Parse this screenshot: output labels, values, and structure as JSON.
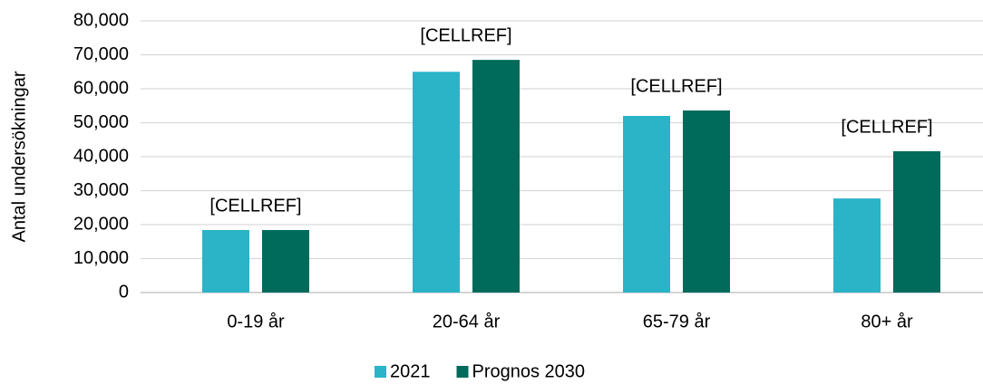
{
  "chart_data": {
    "type": "bar",
    "y_label": "Antal undersökningar",
    "categories": [
      "0-19 år",
      "20-64 år",
      "65-79 år",
      "80+ år"
    ],
    "series": [
      {
        "name": "2021",
        "color": "#2bb3c8",
        "values": [
          18400,
          65000,
          52000,
          27700
        ]
      },
      {
        "name": "Prognos 2030",
        "color": "#006a5b",
        "values": [
          18400,
          68500,
          53600,
          41600
        ],
        "value_labels": [
          "[CELLREF]",
          "[CELLREF]",
          "[CELLREF]",
          "[CELLREF]"
        ]
      }
    ],
    "ylim": [
      0,
      80000
    ],
    "yticks": [
      0,
      {
        "value": 10000,
        "label": "10,000"
      },
      {
        "value": 20000,
        "label": "20,000"
      },
      {
        "value": 30000,
        "label": "30,000"
      },
      {
        "value": 40000,
        "label": "40,000"
      },
      {
        "value": 50000,
        "label": "50,000"
      },
      {
        "value": 60000,
        "label": "60,000"
      },
      {
        "value": 70000,
        "label": "70,000"
      },
      {
        "value": 80000,
        "label": "80,000"
      }
    ],
    "grid": true,
    "legend": "bottom"
  }
}
